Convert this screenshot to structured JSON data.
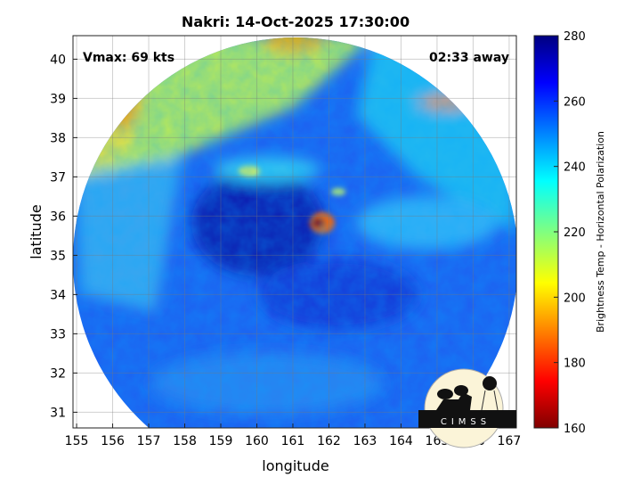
{
  "chart_data": {
    "type": "heatmap",
    "title": "Nakri: 14-Oct-2025 17:30:00",
    "xlabel": "longitude",
    "ylabel": "latitude",
    "xlim": [
      154.9,
      167.2
    ],
    "ylim": [
      30.6,
      40.6
    ],
    "xticks": [
      155,
      156,
      157,
      158,
      159,
      160,
      161,
      162,
      163,
      164,
      165,
      166,
      167
    ],
    "yticks": [
      31,
      32,
      33,
      34,
      35,
      36,
      37,
      38,
      39,
      40
    ],
    "grid": true,
    "annotations": {
      "left": "Vmax: 69 kts",
      "right": "02:33 away"
    },
    "storm_center": {
      "lon": 161.7,
      "lat": 35.8
    },
    "colorbar": {
      "label": "Brightness Temp - Horizontal Polarization",
      "range": [
        160,
        280
      ],
      "ticks": [
        160,
        180,
        200,
        220,
        240,
        260,
        280
      ],
      "colormap": "jet",
      "location": "right"
    }
  },
  "logo": {
    "text": "CIMSS"
  }
}
